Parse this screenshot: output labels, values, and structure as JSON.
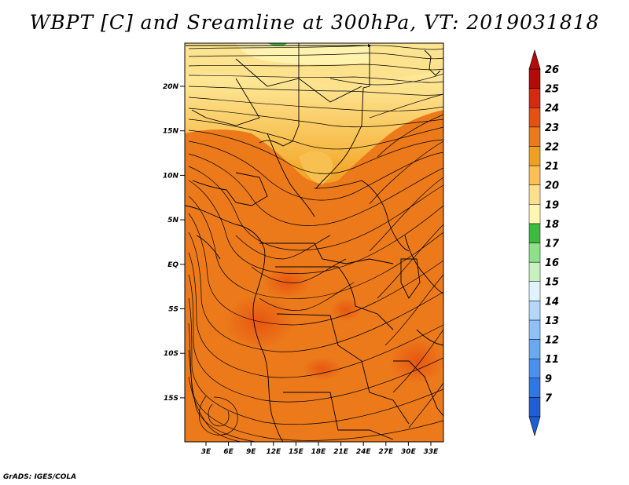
{
  "title": "WBPT [C] and Sreamline at 300hPa, VT: 2019031818",
  "credit": "GrADS: IGES/COLA",
  "map": {
    "lat_ticks": [
      "20N",
      "15N",
      "10N",
      "5N",
      "EQ",
      "5S",
      "10S",
      "15S"
    ],
    "lon_ticks": [
      "3E",
      "6E",
      "9E",
      "12E",
      "15E",
      "18E",
      "21E",
      "24E",
      "27E",
      "30E",
      "33E"
    ]
  },
  "colorbar": {
    "labels": [
      "7",
      "9",
      "11",
      "12",
      "13",
      "14",
      "15",
      "16",
      "17",
      "18",
      "19",
      "20",
      "21",
      "22",
      "23",
      "24",
      "25",
      "26"
    ],
    "colors": [
      "#1e5fd6",
      "#2e78e6",
      "#4a90f0",
      "#6aa8f4",
      "#8fc0f8",
      "#b4d8fb",
      "#e0f4ff",
      "#c8f0c0",
      "#8ee08a",
      "#3cbc3c",
      "#fff6b4",
      "#fde08a",
      "#f8c050",
      "#f0a020",
      "#ec7a1a",
      "#e65010",
      "#d42a10",
      "#b40a0a"
    ]
  }
}
